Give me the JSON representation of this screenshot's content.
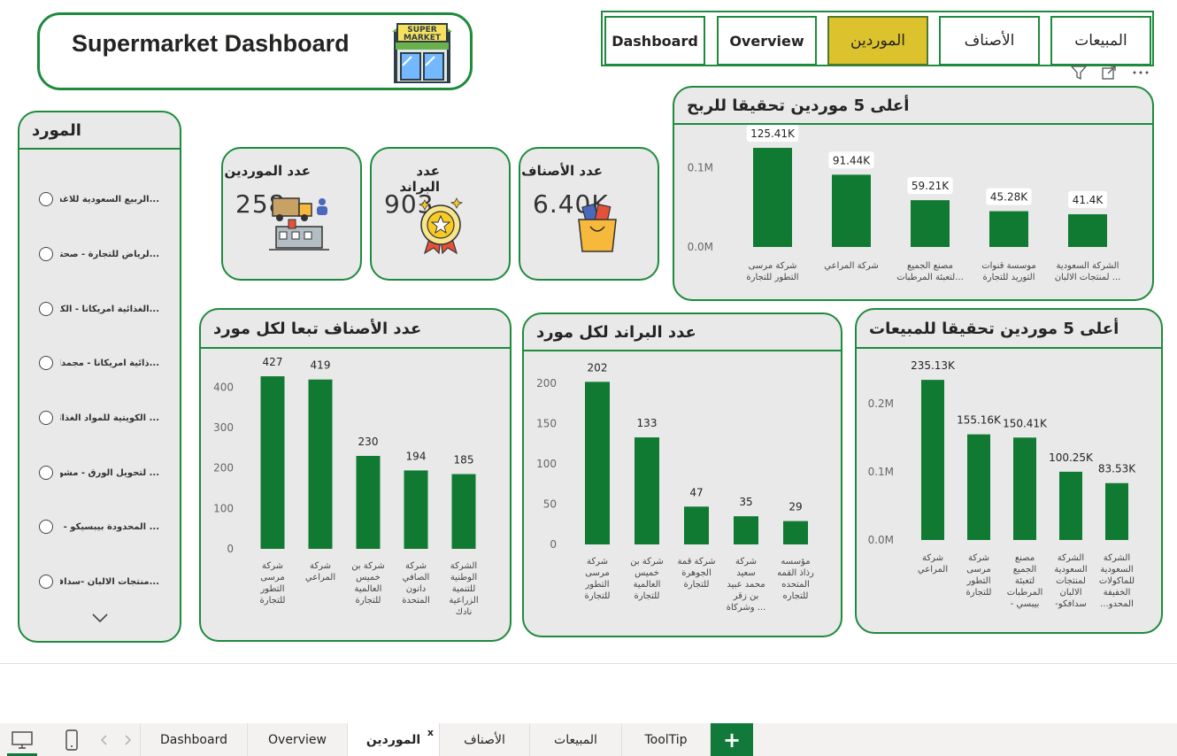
{
  "title": "Supermarket Dashboard",
  "store_sign": "SUPER MARKET",
  "nav": [
    {
      "label": "Dashboard",
      "active": false
    },
    {
      "label": "Overview",
      "active": false
    },
    {
      "label": "الموردين",
      "active": true
    },
    {
      "label": "الأصناف",
      "active": false
    },
    {
      "label": "المبيعات",
      "active": false
    }
  ],
  "slicer": {
    "title": "المورد",
    "items": [
      "...الربيع السعودية للاغذية",
      "...لرياض للتجارة - صحتك",
      "...الغذائية امريكانا - الكيك",
      "...ذائية امريكانا - مجمدات",
      "... الكويتية للمواد الغذائية",
      "... لتحويل الورق - مشوار",
      "... المحدودة بيبسيكو - ليز",
      "...منتجات الالبان -سدافكو"
    ]
  },
  "kpis": [
    {
      "label": "عدد الموردين",
      "value": "258",
      "icon": "supplier-truck-icon"
    },
    {
      "label": "عدد البراند",
      "value": "903",
      "icon": "brand-medal-icon"
    },
    {
      "label": "عدد الأصناف",
      "value": "6.40K",
      "icon": "shopping-bag-icon"
    }
  ],
  "charts": {
    "profit": {
      "title": "أعلى 5 موردين تحقيقا للربح",
      "chart_data": {
        "type": "bar",
        "categories": [
          [
            "شركة مرسى",
            "التطور للتجارة"
          ],
          [
            "شركة المراعي"
          ],
          [
            "مصنع الجميع",
            "لتعبئة المرطبات..."
          ],
          [
            "موسسة قنوات",
            "التوريد للتجارة"
          ],
          [
            "الشركة السعودية",
            "لمنتجات الالبان ..."
          ]
        ],
        "values": [
          125410,
          91440,
          59210,
          45280,
          41400
        ],
        "data_labels": [
          "125.41K",
          "91.44K",
          "59.21K",
          "45.28K",
          "41.4K"
        ],
        "yticks": [
          0,
          100000
        ],
        "ytick_labels": [
          "0.0M",
          "0.1M"
        ],
        "ylim": [
          0,
          140000
        ],
        "color": "#117a32"
      }
    },
    "sales": {
      "title": "أعلى 5 موردين تحقيقا للمبيعات",
      "chart_data": {
        "type": "bar",
        "categories": [
          [
            "شركة",
            "المراعي"
          ],
          [
            "شركة",
            "مرسى",
            "التطور",
            "للتجارة"
          ],
          [
            "مصنع",
            "الجميع",
            "لتعبئة",
            "المرطبات",
            "- بيبسي"
          ],
          [
            "الشركة",
            "السعودية",
            "لمنتجات",
            "الالبان",
            "-سدافكو"
          ],
          [
            "الشركة",
            "السعودية",
            "للماكولات",
            "الخفيفة",
            "...المحدو"
          ]
        ],
        "values": [
          235130,
          155160,
          150410,
          100250,
          83530
        ],
        "data_labels": [
          "235.13K",
          "155.16K",
          "150.41K",
          "100.25K",
          "83.53K"
        ],
        "yticks": [
          0,
          100000,
          200000
        ],
        "ytick_labels": [
          "0.0M",
          "0.1M",
          "0.2M"
        ],
        "ylim": [
          0,
          260000
        ],
        "color": "#117a32"
      }
    },
    "items": {
      "title": "عدد الأصناف تبعا لكل مورد",
      "chart_data": {
        "type": "bar",
        "categories": [
          [
            "شركة",
            "مرسى",
            "التطور",
            "للتجارة"
          ],
          [
            "شركة",
            "المراعي"
          ],
          [
            "شركة بن",
            "خميس",
            "العالمية",
            "للتجارة"
          ],
          [
            "شركة",
            "الصافي",
            "دانون",
            "المتحدة"
          ],
          [
            "الشركة",
            "الوطنية",
            "للتنمية",
            "الزراعية",
            "نادك"
          ]
        ],
        "values": [
          427,
          419,
          230,
          194,
          185
        ],
        "data_labels": [
          "427",
          "419",
          "230",
          "194",
          "185"
        ],
        "yticks": [
          0,
          100,
          200,
          300,
          400
        ],
        "ytick_labels": [
          "0",
          "100",
          "200",
          "300",
          "400"
        ],
        "ylim": [
          0,
          460
        ],
        "color": "#117a32"
      }
    },
    "brands": {
      "title": "عدد البراند لكل مورد",
      "chart_data": {
        "type": "bar",
        "categories": [
          [
            "شركة",
            "مرسى",
            "التطور",
            "للتجارة"
          ],
          [
            "شركة بن",
            "خميس",
            "العالمية",
            "للتجارة"
          ],
          [
            "شركة قمة",
            "الجوهرة",
            "للتجارة"
          ],
          [
            "شركة",
            "سعيد",
            "محمد عبيد",
            "بن زقر",
            "وشركاة ..."
          ],
          [
            "مؤسسه",
            "رذاذ القمه",
            "المتحده",
            "للتجاره"
          ]
        ],
        "values": [
          202,
          133,
          47,
          35,
          29
        ],
        "data_labels": [
          "202",
          "133",
          "47",
          "35",
          "29"
        ],
        "yticks": [
          0,
          50,
          100,
          150,
          200
        ],
        "ytick_labels": [
          "0",
          "50",
          "100",
          "150",
          "200"
        ],
        "ylim": [
          0,
          220
        ],
        "color": "#117a32"
      }
    }
  },
  "tabs": [
    "Dashboard",
    "Overview",
    "الموردين",
    "الأصناف",
    "المبيعات",
    "ToolTip"
  ],
  "active_tab": "الموردين",
  "tab_close": "x",
  "add_tab": "+",
  "accent_green": "#1e8b3c",
  "accent_yellow": "#dcc22c"
}
